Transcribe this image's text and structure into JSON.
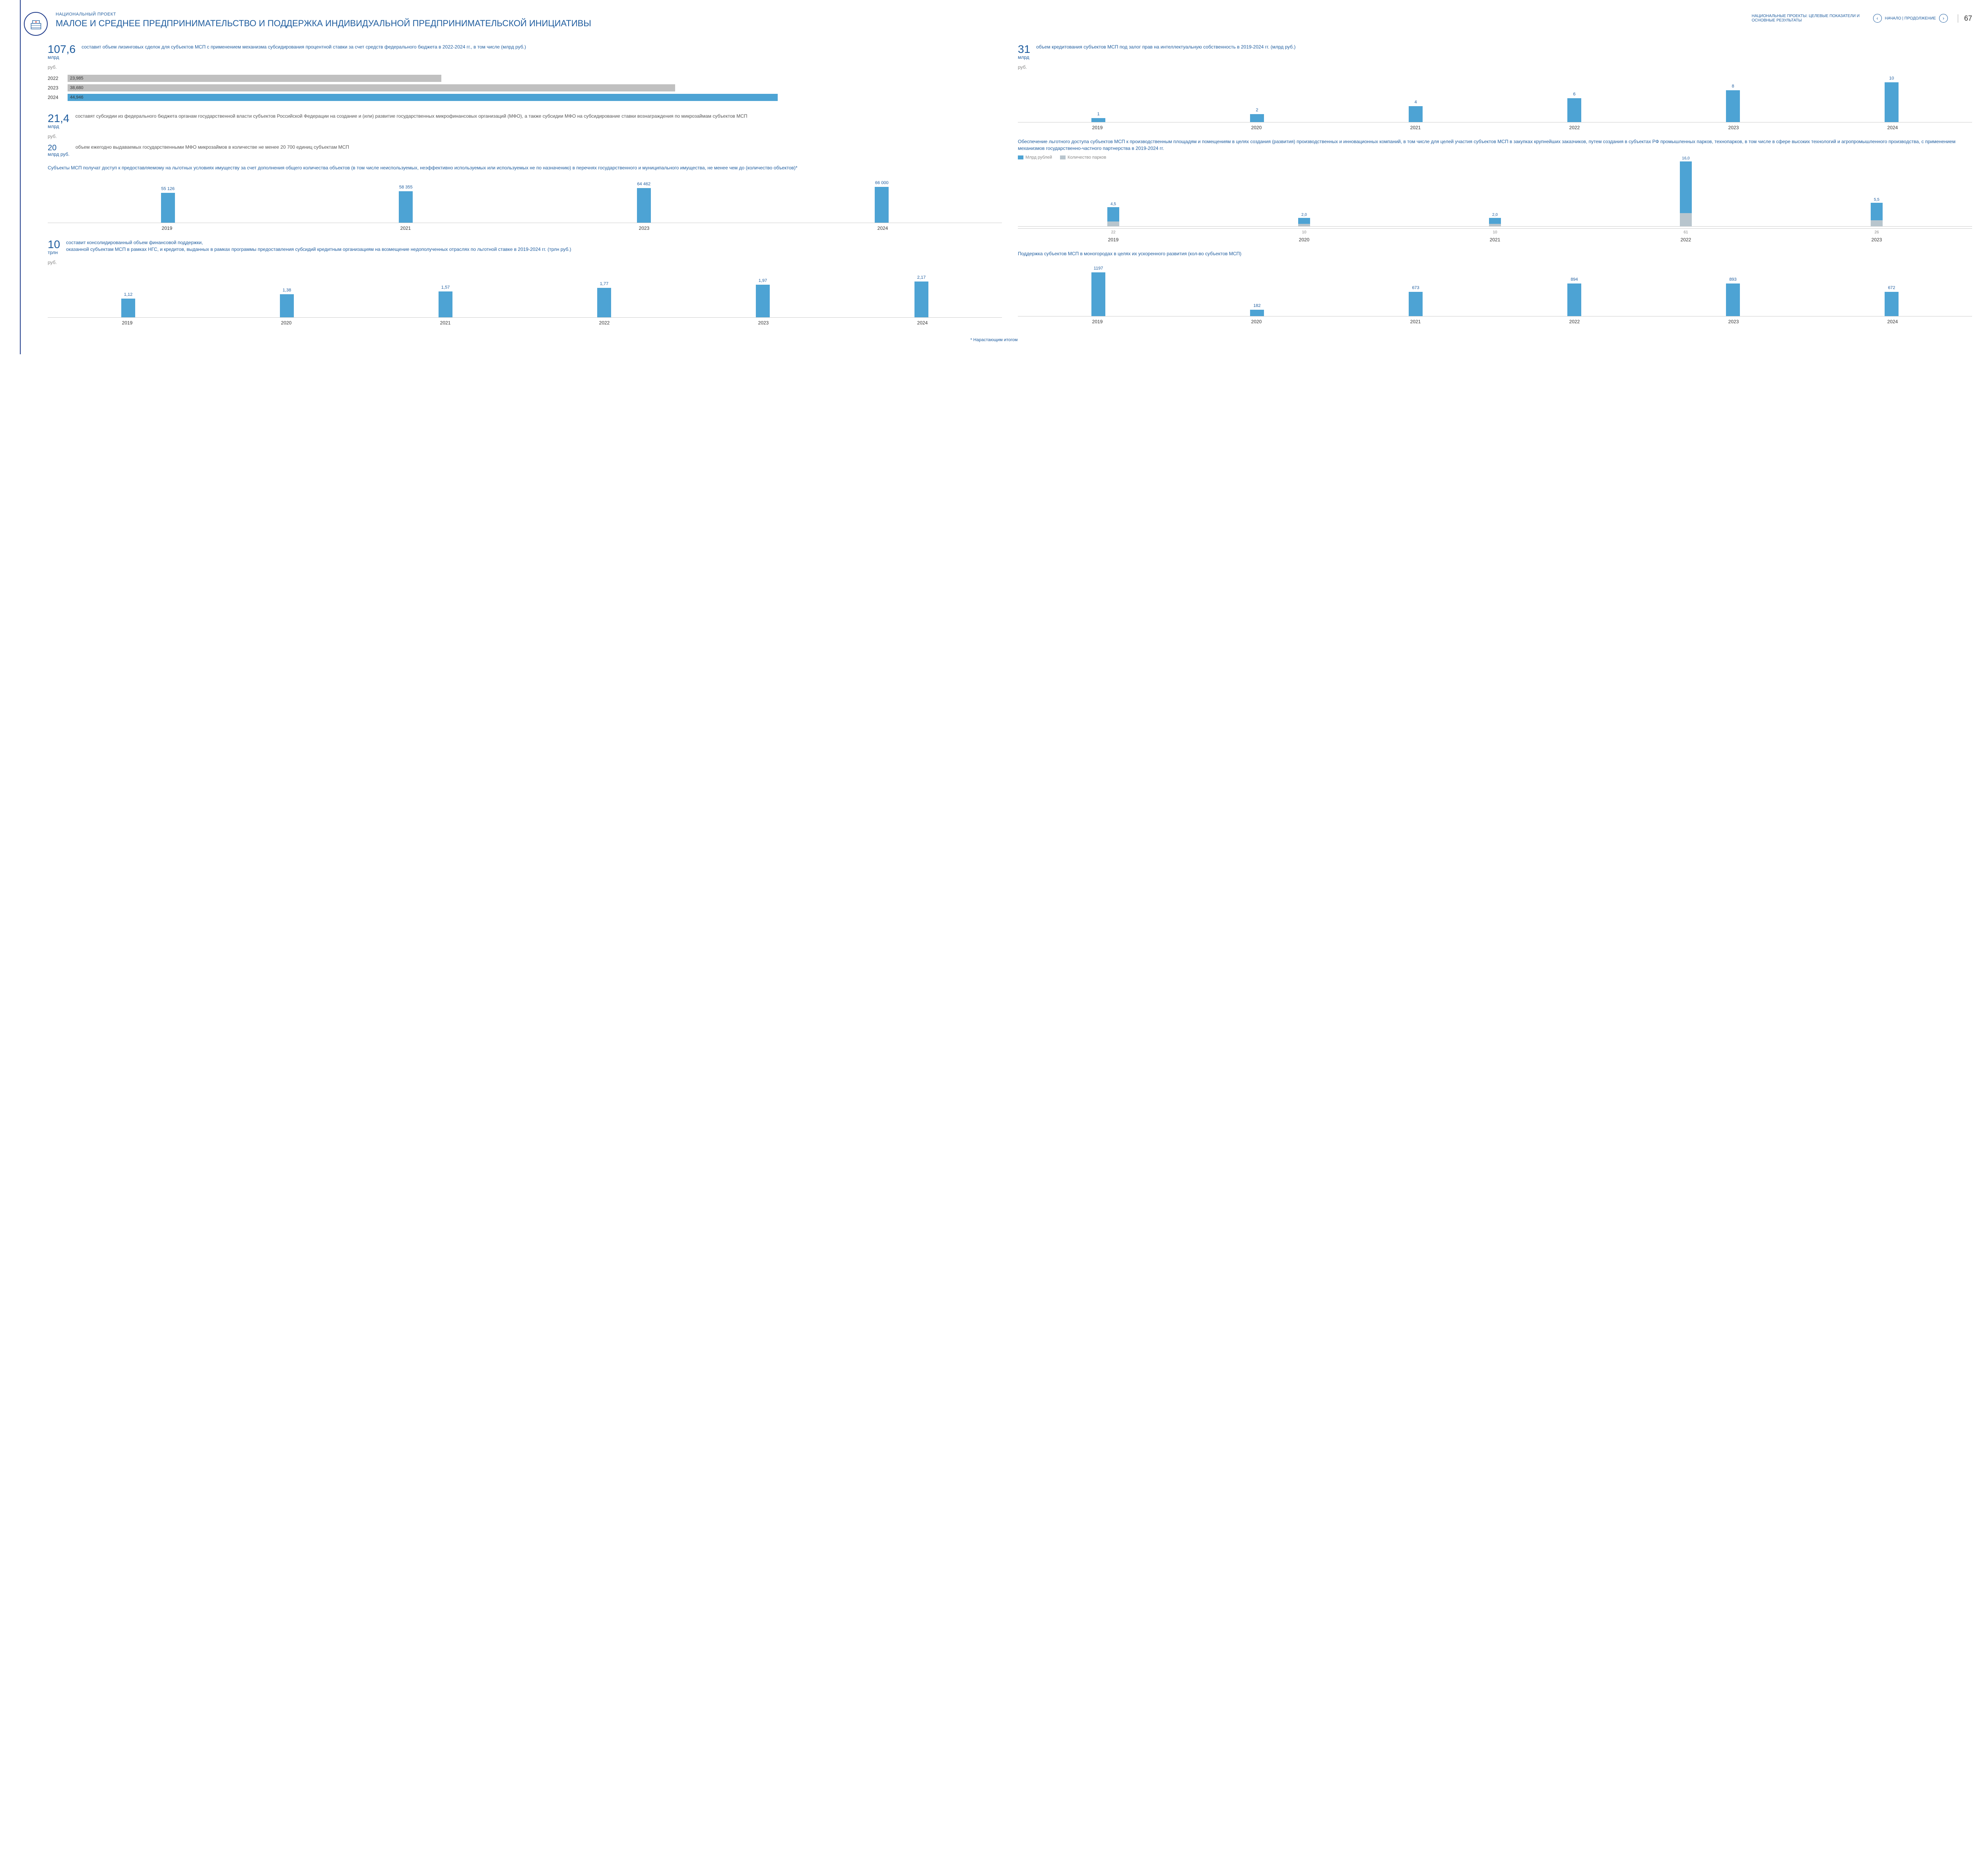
{
  "page": {
    "supertitle": "НАЦИОНАЛЬНЫЙ ПРОЕКТ",
    "title": "МАЛОЕ И СРЕДНЕЕ ПРЕДПРИНИМАТЕЛЬСТВО И ПОДДЕРЖКА ИНДИВИДУАЛЬНОЙ ПРЕДПРИНИМАТЕЛЬСКОЙ ИНИЦИАТИВЫ",
    "breadcrumb": "НАЦИОНАЛЬНЫЕ ПРОЕКТЫ: ЦЕЛЕВЫЕ ПОКАЗАТЕЛИ И ОСНОВНЫЕ РЕЗУЛЬТАТЫ",
    "nav": "НАЧАЛО | ПРОДОЛЖЕНИЕ",
    "number": "67",
    "footnote": "* Нарастающим итогом",
    "colors": {
      "primary": "#4da3d4",
      "secondary": "#b8c5cd",
      "accent": "#1e5c9e",
      "gray": "#c0c0c0"
    }
  },
  "leasing": {
    "value": "107,6",
    "unit_top": "млрд",
    "unit_bot": "руб.",
    "desc": "составит объем лизинговых сделок для субъектов МСП с применением механизма субсидирования процентной ставки за счет средств федерального бюджета в 2022-2024 гг., в том числе (млрд руб.)",
    "bars": [
      {
        "year": "2022",
        "val": "23,985",
        "w": 40,
        "color": "#c0c0c0"
      },
      {
        "year": "2023",
        "val": "38,680",
        "w": 65,
        "color": "#c0c0c0"
      },
      {
        "year": "2024",
        "val": "44,946",
        "w": 76,
        "color": "#4da3d4"
      }
    ]
  },
  "subsidies": {
    "value": "21,4",
    "unit_top": "млрд",
    "unit_bot": "руб.",
    "desc": "составят субсидии из федерального бюджета органам государственной власти субъектов Российской Федерации на создание и (или) развитие государственных микрофинансовых организаций (МФО), а также субсидии МФО на субсидирование ставки вознаграждения по микрозаймам субъектов МСП",
    "sub_value": "20",
    "sub_unit": "млрд руб.",
    "sub_desc": "объем ежегодно выдаваемых государственными МФО микрозаймов в количестве не менее 20 700 единиц субъектам МСП"
  },
  "access": {
    "desc": "Субъекты МСП получат доступ к предоставляемому на льготных условиях имуществу за счет дополнения общего количества объектов (в том числе неиспользуемых, неэффективно используемых или используемых не по назначению) в перечнях государственного и муниципального имущества, не менее чем до (количество объектов)*",
    "years": [
      "2019",
      "2021",
      "2023",
      "2024"
    ],
    "values": [
      "55 126",
      "58 355",
      "64 462",
      "66 000"
    ],
    "heights": [
      83,
      88,
      97,
      100
    ],
    "color": "#4da3d4",
    "max_h": 90
  },
  "consolidated": {
    "value": "10",
    "unit_top": "трлн",
    "unit_bot": "руб.",
    "desc": "составит консолидированный объем финансовой поддержки,",
    "desc2": "оказанной субъектам МСП в рамках НГС, и кредитов, выданных в рамках программы предоставления субсидий кредитным организациям на возмещение недополученных отраслях по льготной ставке в 2019-2024 гг. (трлн руб.)",
    "years": [
      "2019",
      "2020",
      "2021",
      "2022",
      "2023",
      "2024"
    ],
    "values": [
      "1,12",
      "1,38",
      "1,57",
      "1,77",
      "1,97",
      "2,17"
    ],
    "heights": [
      52,
      64,
      72,
      82,
      91,
      100
    ],
    "color": "#4da3d4",
    "max_h": 90
  },
  "ip_credit": {
    "value": "31",
    "unit_top": "млрд",
    "unit_bot": "руб.",
    "desc": "объем кредитования субъектов МСП под залог прав на интеллектуальную собственность в 2019-2024 гг. (млрд руб.)",
    "years": [
      "2019",
      "2020",
      "2021",
      "2022",
      "2023",
      "2024"
    ],
    "values": [
      "1",
      "2",
      "4",
      "6",
      "8",
      "10"
    ],
    "heights": [
      10,
      20,
      40,
      60,
      80,
      100
    ],
    "color": "#4da3d4",
    "max_h": 100
  },
  "parks": {
    "desc": "Обеспечение льготного доступа субъектов МСП к производственным площадям и помещениям в целях создания (развития) производственных и инновационных компаний, в том числе для целей участия субъектов МСП в закупках крупнейших заказчиков, путем создания в субъектах РФ промышленных парков, технопарков, в том числе в сфере высоких технологий и агропромышленного производства, с применением механизмов государственно-частного партнерства в 2019-2024 гг.",
    "legend1": "Млрд рублей",
    "legend2": "Количество парков",
    "years": [
      "2019",
      "2020",
      "2021",
      "2022",
      "2023"
    ],
    "rubles": [
      "4,5",
      "2,0",
      "2,0",
      "16,0",
      "5,5"
    ],
    "rub_h": [
      28,
      12,
      12,
      100,
      34
    ],
    "parks_n": [
      "22",
      "10",
      "10",
      "61",
      "26"
    ],
    "park_h": [
      9,
      4,
      4,
      25,
      11
    ],
    "c1": "#4da3d4",
    "c2": "#b8c5cd",
    "max_h": 130
  },
  "mono": {
    "desc": "Поддержка субъектов МСП в моногородах в целях их ускоренного развития (кол-во субъектов МСП)",
    "years": [
      "2019",
      "2020",
      "2021",
      "2022",
      "2023",
      "2024"
    ],
    "values": [
      "1197",
      "182",
      "673",
      "894",
      "893",
      "672"
    ],
    "heights": [
      100,
      15,
      56,
      75,
      75,
      56
    ],
    "color": "#4da3d4",
    "max_h": 110
  }
}
